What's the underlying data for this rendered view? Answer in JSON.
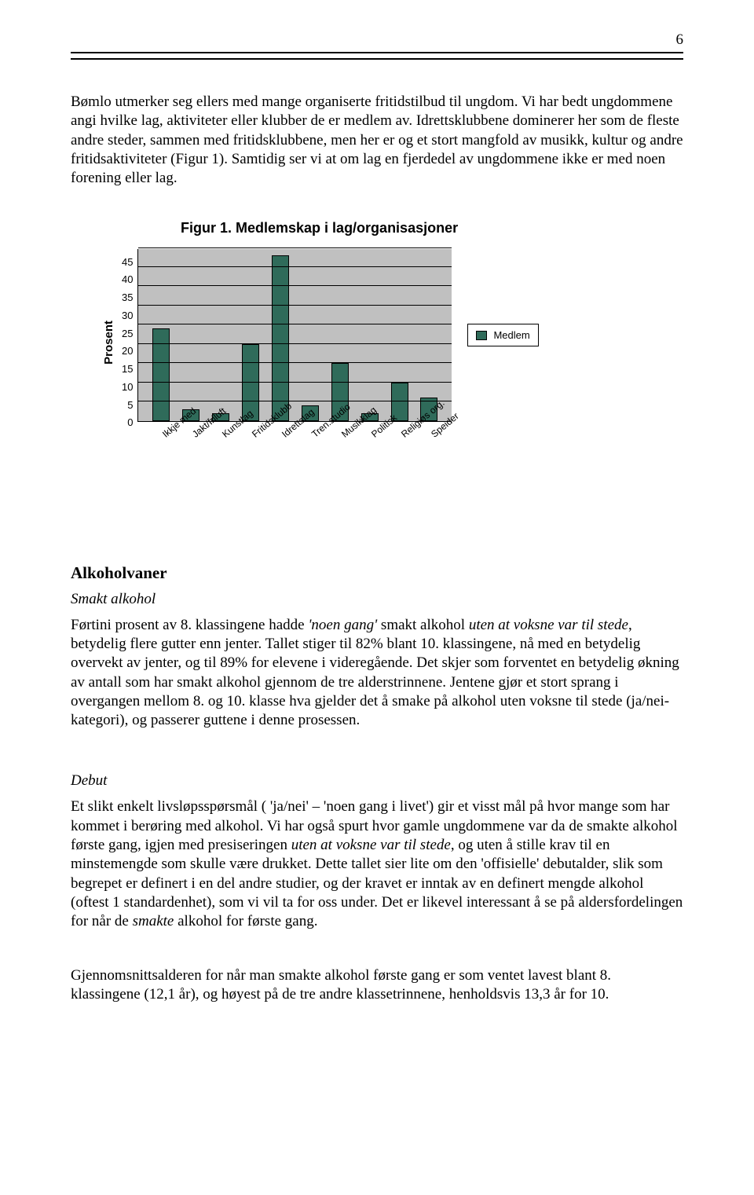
{
  "page_number": "6",
  "para1": "Bømlo utmerker seg ellers med mange organiserte fritidstilbud til ungdom. Vi har bedt ungdommene angi hvilke lag, aktiviteter eller klubber de er medlem av. Idrettsklubbene dominerer her som de fleste andre steder, sammen med fritidsklubbene, men her er og et stort mangfold av musikk, kultur og andre fritidsaktiviteter (Figur 1). Samtidig ser vi at om lag en fjerdedel av ungdommene ikke er med noen forening eller lag.",
  "chart": {
    "title": "Figur 1. Medlemskap i lag/organisasjoner",
    "y_label": "Prosent",
    "ylim_max": 45,
    "ytick_step": 5,
    "yticks": [
      "45",
      "40",
      "35",
      "30",
      "25",
      "20",
      "15",
      "10",
      "5",
      "0"
    ],
    "categories": [
      "Ikkje med",
      "Jakt/friluft",
      "Kunstlag",
      "Fritidsklubb",
      "Idrettslag",
      "Tren.studio",
      "Musikklag",
      "Politisk",
      "Religiøs org.",
      "Speider"
    ],
    "values": [
      24,
      3,
      2,
      20,
      43,
      4,
      15,
      2,
      10,
      6
    ],
    "bar_color": "#2f6b5a",
    "plot_bg": "#c0c0c0",
    "grid_color": "#000000",
    "legend_label": "Medlem"
  },
  "section1_heading": "Alkoholvaner",
  "section1_sub": "Smakt alkohol",
  "para2_pre": "Førtini prosent av 8. klassingene hadde ",
  "para2_it1": "'noen gang'",
  "para2_mid1": " smakt alkohol ",
  "para2_it2": "uten at voksne var til stede",
  "para2_post": ", betydelig flere gutter enn jenter. Tallet stiger til 82% blant 10. klassingene, nå med en betydelig overvekt av jenter, og til 89% for elevene i videregående. Det skjer som forventet en betydelig økning av antall som har smakt alkohol gjennom de tre alderstrinnene. Jentene gjør et stort sprang i overgangen mellom 8. og 10. klasse hva gjelder det å smake på alkohol uten voksne til stede (ja/nei-kategori), og passerer guttene i denne prosessen.",
  "section2_sub": "Debut",
  "para3_a": "Et slikt enkelt livsløpsspørsmål ( 'ja/nei' – 'noen gang i livet') gir et visst mål på hvor mange som har kommet i berøring med alkohol. Vi har også spurt hvor gamle ungdommene var da de smakte alkohol første gang, igjen med presiseringen ",
  "para3_it1": "uten at voksne var til stede",
  "para3_b": ", og uten å stille krav til en minstemengde som skulle være drukket. Dette tallet sier lite om den 'offisielle' debutalder, slik som begrepet er definert i en del andre studier, og der kravet er inntak av en definert mengde alkohol (oftest 1 standardenhet), som vi vil ta for oss under. Det er likevel interessant å se på aldersfordelingen for når de ",
  "para3_it2": "smakte",
  "para3_c": " alkohol for første gang.",
  "para4": "Gjennomsnittsalderen for når man smakte alkohol første gang er som ventet lavest blant 8. klassingene (12,1 år), og høyest på de tre andre klassetrinnene, henholdsvis 13,3 år for 10."
}
